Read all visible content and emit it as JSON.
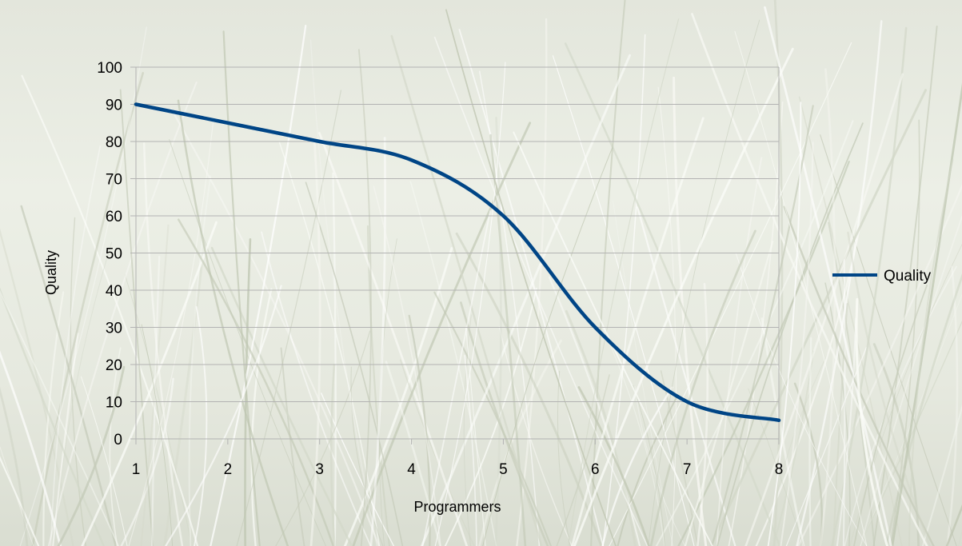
{
  "chart_data": {
    "type": "line",
    "title": "",
    "xlabel": "Programmers",
    "ylabel": "Quality",
    "xlim": [
      1,
      8
    ],
    "ylim": [
      0,
      100
    ],
    "x_ticks": [
      1,
      2,
      3,
      4,
      5,
      6,
      7,
      8
    ],
    "y_ticks": [
      0,
      10,
      20,
      30,
      40,
      50,
      60,
      70,
      80,
      90,
      100
    ],
    "grid": true,
    "smooth": true,
    "legend_position": "right",
    "series": [
      {
        "name": "Quality",
        "color": "#004586",
        "x": [
          1,
          2,
          3,
          4,
          5,
          6,
          7,
          8
        ],
        "values": [
          90,
          85,
          80,
          75,
          60,
          30,
          10,
          5
        ]
      }
    ]
  },
  "colors": {
    "background": "#e6e9df",
    "gridline": "#b3b3b3",
    "axis": "#b3b3b3",
    "series": "#004586"
  }
}
